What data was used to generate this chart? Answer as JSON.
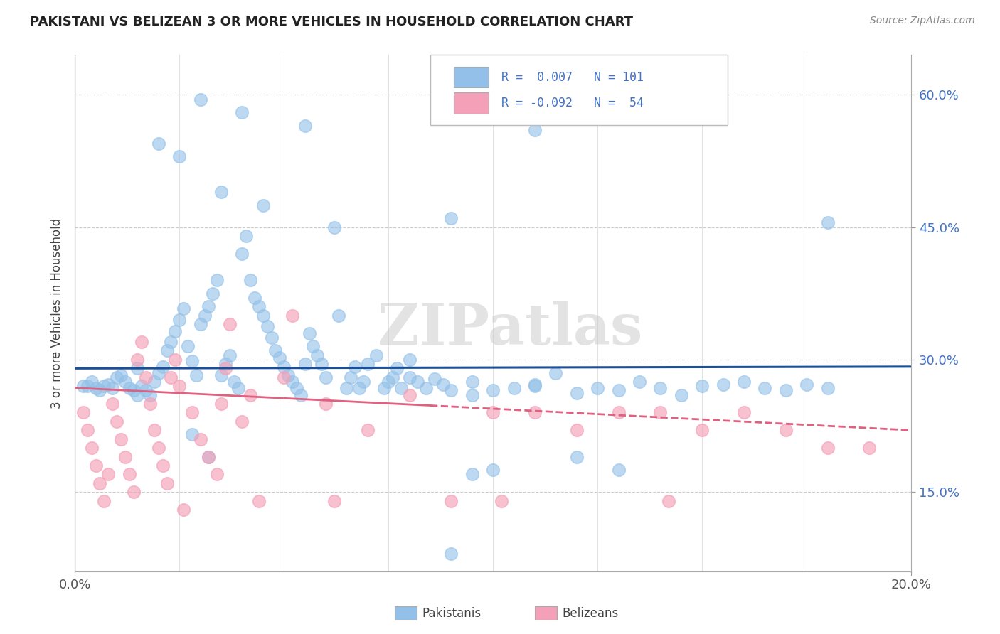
{
  "title": "PAKISTANI VS BELIZEAN 3 OR MORE VEHICLES IN HOUSEHOLD CORRELATION CHART",
  "source": "Source: ZipAtlas.com",
  "ylabel_label": "3 or more Vehicles in Household",
  "x_min": 0.0,
  "x_max": 0.2,
  "y_min": 0.06,
  "y_max": 0.645,
  "watermark": "ZIPatlas",
  "pakistani_color": "#92C0E8",
  "belizean_color": "#F4A0B8",
  "trendline_pakistani_color": "#1B4F9A",
  "trendline_belizean_color": "#E06080",
  "pakistani_scatter": [
    [
      0.002,
      0.27
    ],
    [
      0.003,
      0.27
    ],
    [
      0.004,
      0.275
    ],
    [
      0.005,
      0.268
    ],
    [
      0.006,
      0.265
    ],
    [
      0.007,
      0.27
    ],
    [
      0.008,
      0.272
    ],
    [
      0.009,
      0.268
    ],
    [
      0.01,
      0.28
    ],
    [
      0.011,
      0.282
    ],
    [
      0.012,
      0.275
    ],
    [
      0.013,
      0.268
    ],
    [
      0.014,
      0.265
    ],
    [
      0.015,
      0.26
    ],
    [
      0.015,
      0.29
    ],
    [
      0.016,
      0.27
    ],
    [
      0.017,
      0.265
    ],
    [
      0.018,
      0.26
    ],
    [
      0.019,
      0.275
    ],
    [
      0.02,
      0.285
    ],
    [
      0.021,
      0.292
    ],
    [
      0.022,
      0.31
    ],
    [
      0.023,
      0.32
    ],
    [
      0.024,
      0.332
    ],
    [
      0.025,
      0.345
    ],
    [
      0.026,
      0.358
    ],
    [
      0.027,
      0.315
    ],
    [
      0.028,
      0.298
    ],
    [
      0.029,
      0.282
    ],
    [
      0.03,
      0.34
    ],
    [
      0.031,
      0.35
    ],
    [
      0.032,
      0.36
    ],
    [
      0.033,
      0.375
    ],
    [
      0.034,
      0.39
    ],
    [
      0.035,
      0.282
    ],
    [
      0.036,
      0.295
    ],
    [
      0.037,
      0.305
    ],
    [
      0.038,
      0.275
    ],
    [
      0.039,
      0.268
    ],
    [
      0.04,
      0.42
    ],
    [
      0.041,
      0.44
    ],
    [
      0.042,
      0.39
    ],
    [
      0.043,
      0.37
    ],
    [
      0.044,
      0.36
    ],
    [
      0.045,
      0.35
    ],
    [
      0.046,
      0.338
    ],
    [
      0.047,
      0.325
    ],
    [
      0.048,
      0.31
    ],
    [
      0.049,
      0.302
    ],
    [
      0.05,
      0.292
    ],
    [
      0.051,
      0.282
    ],
    [
      0.052,
      0.275
    ],
    [
      0.053,
      0.268
    ],
    [
      0.054,
      0.26
    ],
    [
      0.055,
      0.295
    ],
    [
      0.056,
      0.33
    ],
    [
      0.057,
      0.315
    ],
    [
      0.058,
      0.305
    ],
    [
      0.059,
      0.295
    ],
    [
      0.06,
      0.28
    ],
    [
      0.062,
      0.45
    ],
    [
      0.063,
      0.35
    ],
    [
      0.065,
      0.268
    ],
    [
      0.066,
      0.28
    ],
    [
      0.067,
      0.292
    ],
    [
      0.068,
      0.268
    ],
    [
      0.069,
      0.275
    ],
    [
      0.07,
      0.295
    ],
    [
      0.072,
      0.305
    ],
    [
      0.074,
      0.268
    ],
    [
      0.075,
      0.275
    ],
    [
      0.076,
      0.28
    ],
    [
      0.077,
      0.29
    ],
    [
      0.078,
      0.268
    ],
    [
      0.08,
      0.28
    ],
    [
      0.082,
      0.275
    ],
    [
      0.084,
      0.268
    ],
    [
      0.086,
      0.278
    ],
    [
      0.088,
      0.272
    ],
    [
      0.09,
      0.265
    ],
    [
      0.095,
      0.275
    ],
    [
      0.1,
      0.265
    ],
    [
      0.105,
      0.268
    ],
    [
      0.11,
      0.272
    ],
    [
      0.115,
      0.285
    ],
    [
      0.12,
      0.262
    ],
    [
      0.125,
      0.268
    ],
    [
      0.13,
      0.265
    ],
    [
      0.135,
      0.275
    ],
    [
      0.14,
      0.268
    ],
    [
      0.145,
      0.26
    ],
    [
      0.15,
      0.27
    ],
    [
      0.155,
      0.272
    ],
    [
      0.16,
      0.275
    ],
    [
      0.165,
      0.268
    ],
    [
      0.17,
      0.265
    ],
    [
      0.175,
      0.272
    ],
    [
      0.18,
      0.268
    ],
    [
      0.03,
      0.595
    ],
    [
      0.04,
      0.58
    ],
    [
      0.055,
      0.565
    ],
    [
      0.02,
      0.545
    ],
    [
      0.025,
      0.53
    ],
    [
      0.035,
      0.49
    ],
    [
      0.045,
      0.475
    ],
    [
      0.028,
      0.215
    ],
    [
      0.032,
      0.19
    ],
    [
      0.09,
      0.08
    ],
    [
      0.095,
      0.17
    ],
    [
      0.1,
      0.175
    ],
    [
      0.11,
      0.27
    ],
    [
      0.11,
      0.56
    ],
    [
      0.09,
      0.46
    ],
    [
      0.08,
      0.3
    ],
    [
      0.12,
      0.19
    ],
    [
      0.13,
      0.175
    ],
    [
      0.18,
      0.455
    ],
    [
      0.095,
      0.26
    ]
  ],
  "belizean_scatter": [
    [
      0.002,
      0.24
    ],
    [
      0.003,
      0.22
    ],
    [
      0.004,
      0.2
    ],
    [
      0.005,
      0.18
    ],
    [
      0.006,
      0.16
    ],
    [
      0.007,
      0.14
    ],
    [
      0.008,
      0.17
    ],
    [
      0.009,
      0.25
    ],
    [
      0.01,
      0.23
    ],
    [
      0.011,
      0.21
    ],
    [
      0.012,
      0.19
    ],
    [
      0.013,
      0.17
    ],
    [
      0.014,
      0.15
    ],
    [
      0.015,
      0.3
    ],
    [
      0.016,
      0.32
    ],
    [
      0.017,
      0.28
    ],
    [
      0.018,
      0.25
    ],
    [
      0.019,
      0.22
    ],
    [
      0.02,
      0.2
    ],
    [
      0.021,
      0.18
    ],
    [
      0.022,
      0.16
    ],
    [
      0.023,
      0.28
    ],
    [
      0.024,
      0.3
    ],
    [
      0.025,
      0.27
    ],
    [
      0.026,
      0.13
    ],
    [
      0.028,
      0.24
    ],
    [
      0.03,
      0.21
    ],
    [
      0.032,
      0.19
    ],
    [
      0.034,
      0.17
    ],
    [
      0.035,
      0.25
    ],
    [
      0.036,
      0.29
    ],
    [
      0.037,
      0.34
    ],
    [
      0.04,
      0.23
    ],
    [
      0.042,
      0.26
    ],
    [
      0.044,
      0.14
    ],
    [
      0.05,
      0.28
    ],
    [
      0.052,
      0.35
    ],
    [
      0.06,
      0.25
    ],
    [
      0.062,
      0.14
    ],
    [
      0.07,
      0.22
    ],
    [
      0.08,
      0.26
    ],
    [
      0.09,
      0.14
    ],
    [
      0.1,
      0.24
    ],
    [
      0.102,
      0.14
    ],
    [
      0.11,
      0.24
    ],
    [
      0.12,
      0.22
    ],
    [
      0.13,
      0.24
    ],
    [
      0.14,
      0.24
    ],
    [
      0.142,
      0.14
    ],
    [
      0.15,
      0.22
    ],
    [
      0.16,
      0.24
    ],
    [
      0.17,
      0.22
    ],
    [
      0.18,
      0.2
    ],
    [
      0.19,
      0.2
    ]
  ],
  "pak_trendline": [
    [
      0.0,
      0.29
    ],
    [
      0.2,
      0.292
    ]
  ],
  "bel_trendline_solid": [
    [
      0.0,
      0.268
    ],
    [
      0.085,
      0.248
    ]
  ],
  "bel_trendline_dashed": [
    [
      0.085,
      0.248
    ],
    [
      0.2,
      0.22
    ]
  ],
  "y_ticks": [
    0.15,
    0.3,
    0.45,
    0.6
  ],
  "y_tick_labels": [
    "15.0%",
    "30.0%",
    "45.0%",
    "60.0%"
  ],
  "x_ticks": [
    0.0,
    0.2
  ],
  "x_tick_labels": [
    "0.0%",
    "20.0%"
  ]
}
